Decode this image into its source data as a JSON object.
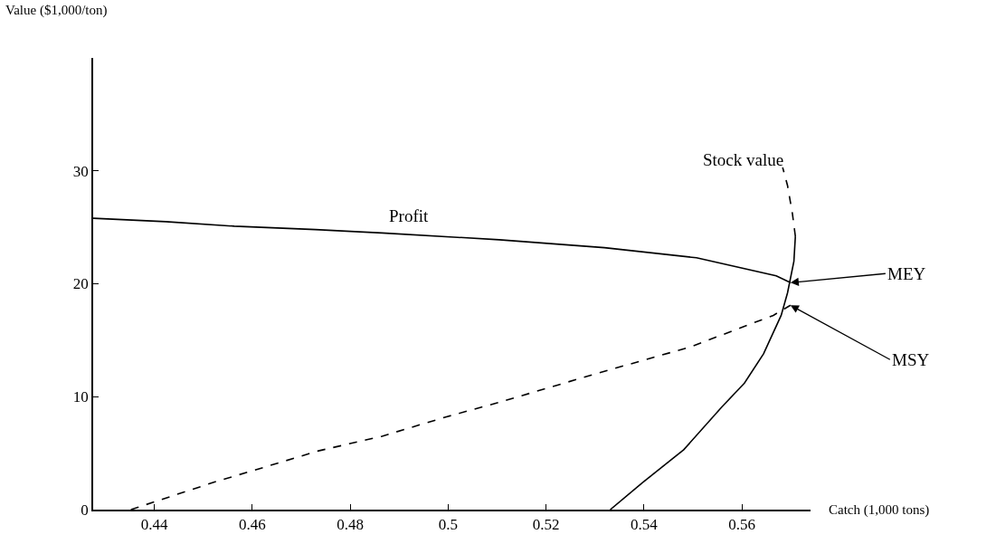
{
  "chart_data": {
    "type": "line",
    "xlabel": "Catch (1,000 tons)",
    "ylabel": "Value ($1,000/ton)",
    "xlim": [
      0.4275,
      0.574
    ],
    "xticks": [
      0.44,
      0.46,
      0.48,
      0.5,
      0.52,
      0.54,
      0.56
    ],
    "ylim": [
      0,
      40
    ],
    "yticks": [
      0,
      10,
      20,
      30
    ],
    "series": [
      {
        "color": "#000000",
        "line_style": "solid",
        "x": [
          0.4275,
          0.4423,
          0.4563,
          0.4729,
          0.4865,
          0.5104,
          0.5319,
          0.5507,
          0.567,
          0.5699
        ],
        "values": [
          25.8,
          25.5,
          25.1,
          24.8,
          24.5,
          23.9,
          23.2,
          22.3,
          20.7,
          20.1
        ]
      },
      {
        "color": "#000000",
        "line_style": "dashed",
        "x": [
          0.4352,
          0.4527,
          0.4605,
          0.4735,
          0.4865,
          0.4995,
          0.5104,
          0.5299,
          0.5494,
          0.5664,
          0.5699
        ],
        "values": [
          0,
          2.5,
          3.5,
          5.2,
          6.5,
          8.2,
          9.5,
          12.0,
          14.4,
          17.2,
          18.1
        ]
      },
      {
        "color": "#000000",
        "line_style": "solid",
        "x": [
          0.5331,
          0.5397,
          0.5481,
          0.5559,
          0.5605,
          0.5644,
          0.568,
          0.5693,
          0.5706,
          0.5709
        ],
        "values": [
          0,
          2.4,
          5.3,
          9.1,
          11.2,
          13.8,
          17.2,
          19.2,
          22.0,
          24.2
        ]
      },
      {
        "color": "#000000",
        "line_style": "dashed",
        "x": [
          0.5709,
          0.5703,
          0.5693,
          0.5683
        ],
        "values": [
          24.2,
          26.2,
          28.7,
          30.3
        ]
      }
    ],
    "annotations": [
      "Profit",
      "Stock value",
      {
        "text": "MEY",
        "x": 0.5699,
        "y": 20.1
      },
      {
        "text": "MSY",
        "x": 0.5699,
        "y": 18.1
      }
    ]
  }
}
